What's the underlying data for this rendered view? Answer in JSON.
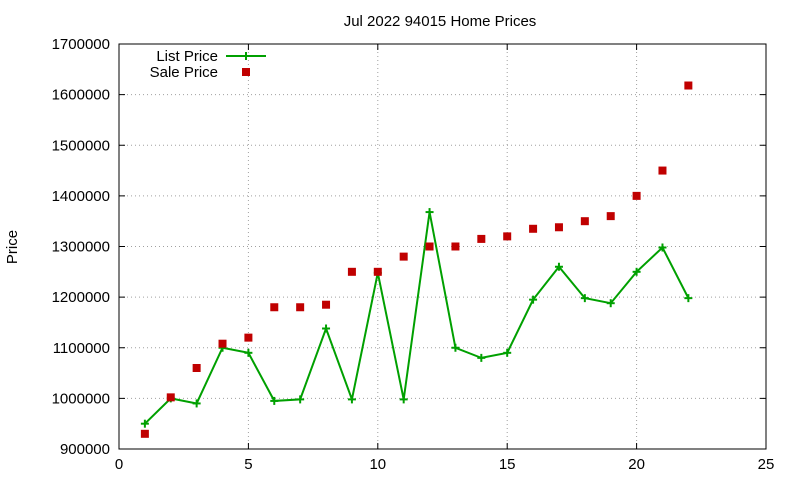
{
  "chart_data": {
    "type": "line",
    "title": "Jul 2022 94015 Home Prices",
    "xlabel": "",
    "ylabel": "Price",
    "xlim": [
      0,
      25
    ],
    "ylim": [
      900000,
      1700000
    ],
    "x_ticks": [
      0,
      5,
      10,
      15,
      20,
      25
    ],
    "y_ticks": [
      900000,
      1000000,
      1100000,
      1200000,
      1300000,
      1400000,
      1500000,
      1600000,
      1700000
    ],
    "grid": true,
    "legend_position": "top-left",
    "series": [
      {
        "name": "List Price",
        "style": "linespoints",
        "marker": "plus",
        "color": "#00a000",
        "x": [
          1,
          2,
          3,
          4,
          5,
          6,
          7,
          8,
          9,
          10,
          11,
          12,
          13,
          14,
          15,
          16,
          17,
          18,
          19,
          20,
          21,
          22
        ],
        "values": [
          950000,
          1000000,
          990000,
          1100000,
          1090000,
          995000,
          998000,
          1138000,
          998000,
          1248000,
          998000,
          1368000,
          1100000,
          1080000,
          1090000,
          1195000,
          1260000,
          1198000,
          1188000,
          1250000,
          1298000,
          1198000
        ]
      },
      {
        "name": "Sale Price",
        "style": "points",
        "marker": "square",
        "color": "#c00000",
        "x": [
          1,
          2,
          3,
          4,
          5,
          6,
          7,
          8,
          9,
          10,
          11,
          12,
          13,
          14,
          15,
          16,
          17,
          18,
          19,
          20,
          21,
          22
        ],
        "values": [
          930000,
          1002000,
          1060000,
          1108000,
          1120000,
          1180000,
          1180000,
          1185000,
          1250000,
          1250000,
          1280000,
          1300000,
          1300000,
          1315000,
          1320000,
          1335000,
          1338000,
          1350000,
          1360000,
          1400000,
          1450000,
          1618000
        ]
      }
    ]
  }
}
